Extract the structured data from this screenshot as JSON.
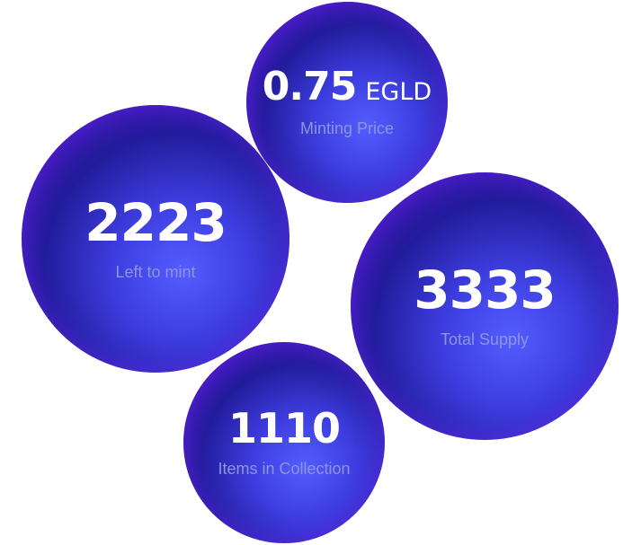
{
  "stats": {
    "minting_price": {
      "value": "0.75",
      "unit": "EGLD",
      "label": "Minting Price"
    },
    "left_to_mint": {
      "value": "2223",
      "label": "Left to mint"
    },
    "total_supply": {
      "value": "3333",
      "label": "Total Supply"
    },
    "items_in_collection": {
      "value": "1110",
      "label": "Items in Collection"
    }
  },
  "colors": {
    "bubble_core": "#3a3ff0",
    "bubble_edge": "#6e28e6",
    "bubble_mid": "#16109a",
    "label": "#8e95d8",
    "value": "#ffffff"
  }
}
